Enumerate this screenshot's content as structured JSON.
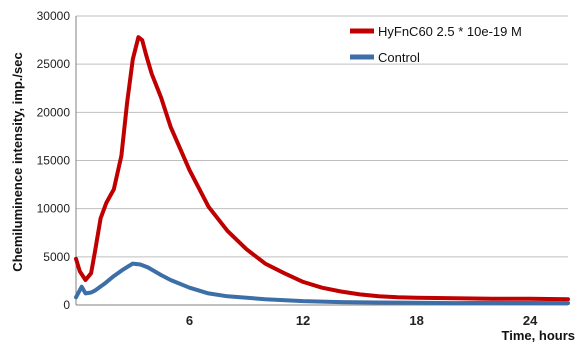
{
  "chart_data": {
    "type": "line",
    "title": "",
    "xlabel": "Time, hours",
    "ylabel": "Chemiluminence intensity, imp./sec",
    "xlim": [
      0,
      26
    ],
    "ylim": [
      0,
      30000
    ],
    "x_ticks": [
      6,
      12,
      18,
      24
    ],
    "y_ticks": [
      0,
      5000,
      10000,
      15000,
      20000,
      25000,
      30000
    ],
    "grid": "horizontal",
    "legend_position": "top-right",
    "series": [
      {
        "name": "HyFnC60 2.5 * 10e-19 M",
        "color": "#c00000",
        "x": [
          0,
          0.2,
          0.5,
          0.8,
          1.0,
          1.3,
          1.6,
          2.0,
          2.4,
          2.7,
          3.0,
          3.3,
          3.5,
          3.7,
          4.0,
          4.5,
          5.0,
          6.0,
          7.0,
          8.0,
          9.0,
          10.0,
          11.0,
          12.0,
          13.0,
          14.0,
          15.0,
          16.0,
          17.0,
          18.0,
          20.0,
          22.0,
          24.0,
          26.0
        ],
        "values": [
          4800,
          3500,
          2600,
          3300,
          5500,
          9000,
          10600,
          12000,
          15500,
          21000,
          25500,
          27800,
          27500,
          26000,
          24000,
          21500,
          18500,
          14000,
          10200,
          7700,
          5800,
          4300,
          3300,
          2400,
          1800,
          1400,
          1100,
          900,
          800,
          750,
          700,
          650,
          650,
          600
        ]
      },
      {
        "name": "Control",
        "color": "#3c6ea7",
        "x": [
          0,
          0.3,
          0.5,
          0.8,
          1.0,
          1.5,
          2.0,
          2.5,
          3.0,
          3.4,
          3.8,
          4.5,
          5.0,
          6.0,
          7.0,
          8.0,
          10.0,
          12.0,
          14.0,
          16.0,
          18.0,
          20.0,
          22.0,
          24.0,
          26.0
        ],
        "values": [
          800,
          1900,
          1200,
          1300,
          1500,
          2200,
          3000,
          3700,
          4300,
          4200,
          3900,
          3100,
          2600,
          1800,
          1200,
          900,
          600,
          400,
          300,
          260,
          230,
          200,
          220,
          210,
          200
        ]
      }
    ]
  }
}
